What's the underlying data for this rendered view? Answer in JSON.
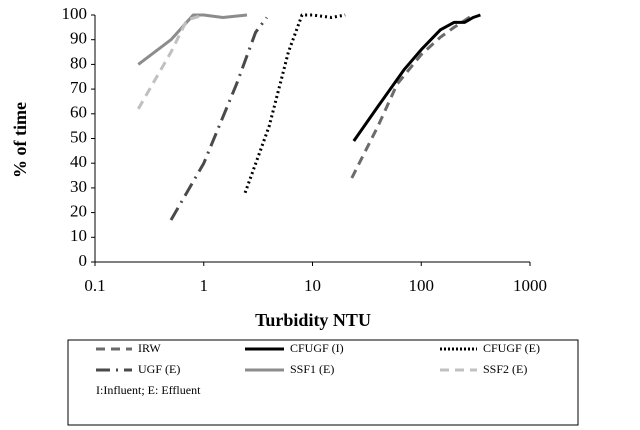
{
  "chart_data": {
    "type": "line",
    "x_label": "Turbidity NTU",
    "y_label": "% of time",
    "xscale": "log",
    "xlim": [
      0.1,
      1000
    ],
    "xticks": [
      0.1,
      1,
      10,
      100,
      1000
    ],
    "ylim": [
      0,
      100
    ],
    "yticks": [
      0,
      10,
      20,
      30,
      40,
      50,
      60,
      70,
      80,
      90,
      100
    ],
    "legend_note": "I:Influent; E: Effluent",
    "series": [
      {
        "name": "IRW",
        "color": "#6b6b6b",
        "style": "dashed",
        "x": [
          23,
          40,
          60,
          100,
          150,
          200,
          300
        ],
        "values": [
          34,
          55,
          72,
          84,
          91,
          95,
          100
        ]
      },
      {
        "name": "CFUGF (I)",
        "color": "#000000",
        "style": "solid",
        "x": [
          24,
          40,
          70,
          100,
          150,
          200,
          250,
          300,
          350
        ],
        "values": [
          49,
          63,
          78,
          86,
          94,
          97,
          97,
          99,
          100
        ]
      },
      {
        "name": "CFUGF (E)",
        "color": "#000000",
        "style": "dotted",
        "x": [
          2.4,
          4,
          6,
          8,
          10,
          15,
          20
        ],
        "values": [
          28,
          55,
          85,
          100,
          100,
          99,
          100
        ]
      },
      {
        "name": "UGF (E)",
        "color": "#4a4a4a",
        "style": "dashdot",
        "x": [
          0.5,
          1,
          2,
          3,
          3.8
        ],
        "values": [
          17,
          40,
          72,
          93,
          99
        ]
      },
      {
        "name": "SSF1 (E)",
        "color": "#8c8c8c",
        "style": "solid",
        "x": [
          0.25,
          0.5,
          0.8,
          1,
          1.5,
          2.5
        ],
        "values": [
          80,
          90,
          100,
          100,
          99,
          100
        ]
      },
      {
        "name": "SSF2 (E)",
        "color": "#c0c0c0",
        "style": "dashed",
        "x": [
          0.25,
          0.5,
          0.7,
          1
        ],
        "values": [
          62,
          85,
          98,
          100
        ]
      }
    ]
  }
}
